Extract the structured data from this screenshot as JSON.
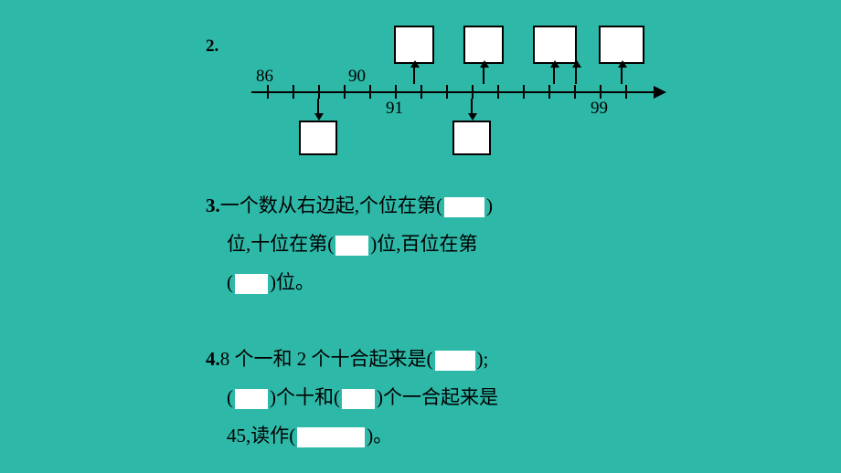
{
  "background_color": "#2eb8a8",
  "text_color": "#000000",
  "blank_color": "#ffffff",
  "font_family": "SimSun",
  "base_fontsize": 21,
  "q2": {
    "label": "2.",
    "number_line": {
      "top_labels": {
        "86": 86,
        "90": 90
      },
      "bottom_labels": {
        "91": 91,
        "99": 99
      },
      "tick_count": 15,
      "top_blank_boxes": 4,
      "bottom_blank_boxes": 2
    }
  },
  "q3": {
    "label": "3.",
    "line1_pre": "一个数从右边起,个位在第(",
    "line1_post": ")",
    "line2_pre": "位,十位在第(",
    "line2_mid": ")位,百位在第",
    "line3_pre": "(",
    "line3_post": ")位。"
  },
  "q4": {
    "label": "4.",
    "line1_pre": "8 个一和 2 个十合起来是(",
    "line1_post": ");",
    "line2_pre": "(",
    "line2_mid1": ")个十和(",
    "line2_mid2": ")个一合起来是",
    "line3_pre": "45,读作(",
    "line3_post": ")。"
  }
}
